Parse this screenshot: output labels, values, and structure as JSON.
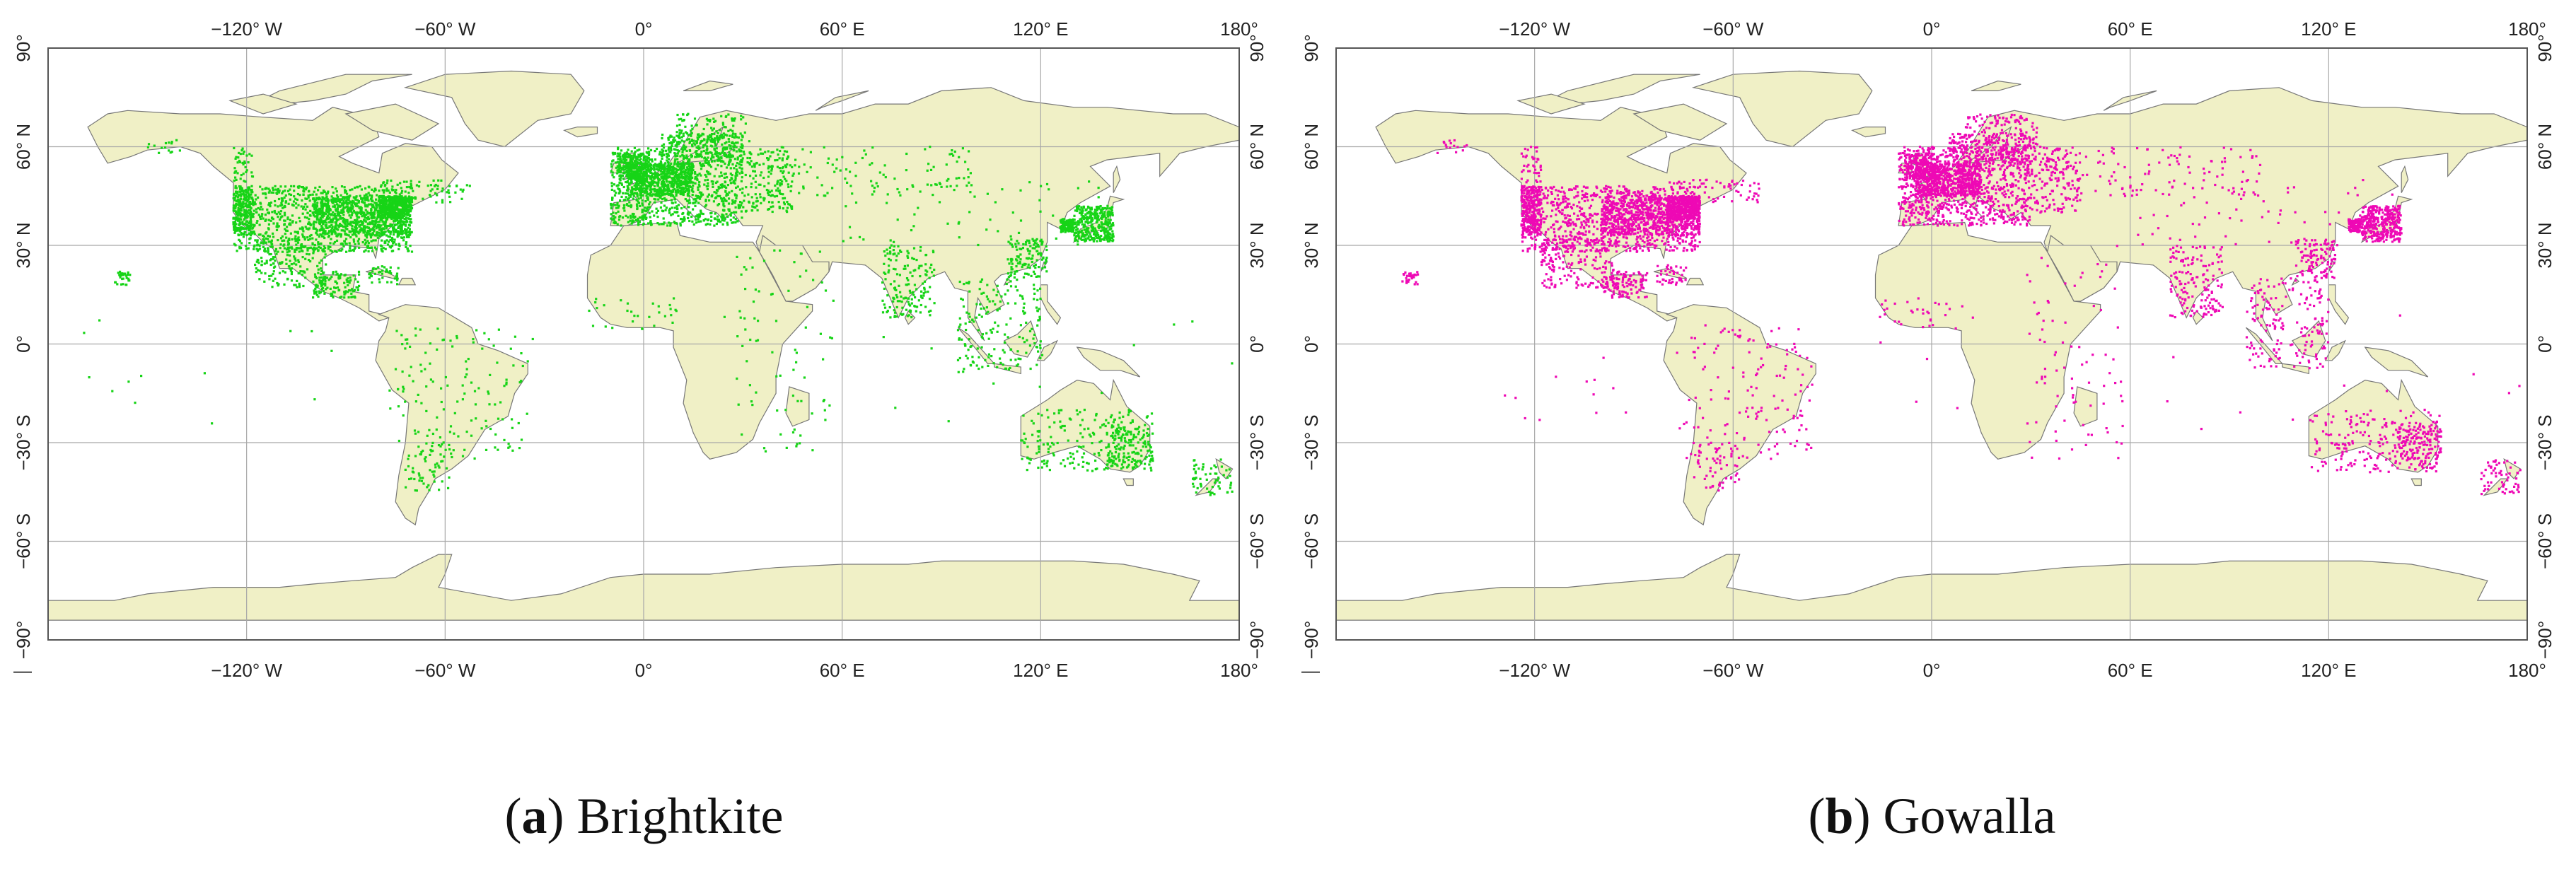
{
  "colors": {
    "land": "#F0F0C6",
    "coast": "#777777",
    "ocean": "#FFFFFF",
    "grid": "#A8A8A8",
    "frame": "#555555"
  },
  "axes": {
    "lon_ticks": [
      "−120° W",
      "−60° W",
      "0°",
      "60° E",
      "120° E",
      "180°"
    ],
    "lon_values": [
      -120,
      -60,
      0,
      60,
      120,
      180
    ],
    "lon_left_end_label": "—",
    "lat_ticks": [
      "90°",
      "60° N",
      "30° N",
      "0°",
      "−30° S",
      "−60° S",
      "−90°"
    ],
    "lat_values": [
      90,
      60,
      30,
      0,
      -30,
      -60,
      -90
    ],
    "lon_range": [
      -180,
      180
    ],
    "lat_range": [
      -90,
      90
    ],
    "grid": true
  },
  "panels": [
    {
      "letter": "a",
      "caption_paren_open": "(",
      "caption_paren_close": ")",
      "caption_title": "Brightkite",
      "point_color": "#17D417",
      "dot_density": 1.0
    },
    {
      "letter": "b",
      "caption_paren_open": "(",
      "caption_paren_close": ")",
      "caption_title": "Gowalla",
      "point_color": "#EE09B5",
      "dot_density": 1.0
    }
  ]
}
